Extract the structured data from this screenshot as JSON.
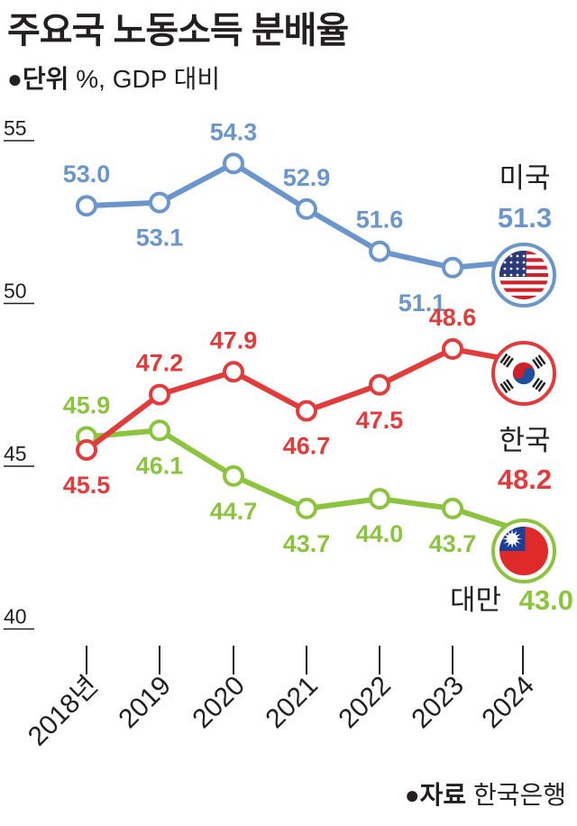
{
  "title": "주요국 노동소득 분배율",
  "unit": {
    "bullet": "●",
    "label": "단위",
    "value": "%, GDP 대비"
  },
  "source": {
    "bullet": "●",
    "label": "자료",
    "value": "한국은행"
  },
  "chart_data": {
    "type": "line",
    "title": "주요국 노동소득 분배율",
    "ylabel": "%, GDP 대비",
    "ylim": [
      40,
      55
    ],
    "yticks": [
      "55",
      "50",
      "45",
      "40"
    ],
    "categories": [
      "2018년",
      "2019",
      "2020",
      "2021",
      "2022",
      "2023",
      "2024"
    ],
    "grid": false,
    "series": [
      {
        "name": "미국",
        "color": "#6b96cc",
        "values": [
          53.0,
          53.1,
          54.3,
          52.9,
          51.6,
          51.1,
          51.3
        ],
        "labels": [
          "53.0",
          "53.1",
          "54.3",
          "52.9",
          "51.6",
          "51.1",
          "51.3"
        ],
        "flag": "us-flag-icon"
      },
      {
        "name": "한국",
        "color": "#e03c3c",
        "values": [
          45.5,
          47.2,
          47.9,
          46.7,
          47.5,
          48.6,
          48.2
        ],
        "labels": [
          "45.5",
          "47.2",
          "47.9",
          "46.7",
          "47.5",
          "48.6",
          "48.2"
        ],
        "flag": "korea-flag-icon"
      },
      {
        "name": "대만",
        "color": "#8dc43f",
        "values": [
          45.9,
          46.1,
          44.7,
          43.7,
          44.0,
          43.7,
          43.0
        ],
        "labels": [
          "45.9",
          "46.1",
          "44.7",
          "43.7",
          "44.0",
          "43.7",
          "43.0"
        ],
        "flag": "taiwan-flag-icon"
      }
    ]
  }
}
